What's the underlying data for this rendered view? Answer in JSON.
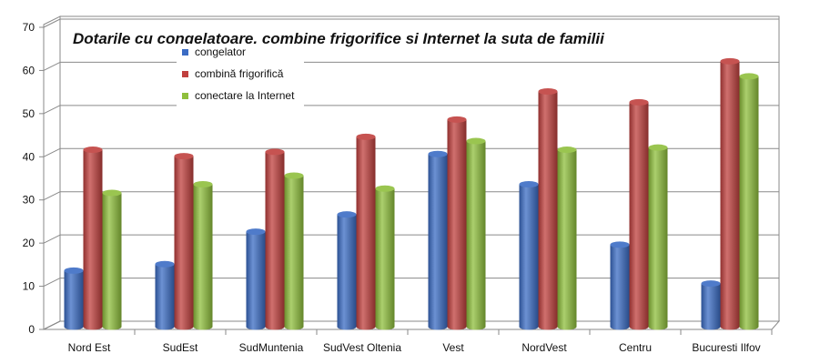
{
  "chart_data": {
    "type": "bar",
    "title": "Dotarile cu congelatoare, combine frigorifice si Internet la suta de familii",
    "xlabel": "",
    "ylabel": "",
    "ylim": [
      0,
      70
    ],
    "yticks": [
      0,
      10,
      20,
      30,
      40,
      50,
      60,
      70
    ],
    "grid": true,
    "legend_position": "top-left",
    "categories": [
      "Nord Est",
      "SudEst",
      "SudMuntenia",
      "SudVest Oltenia",
      "Vest",
      "NordVest",
      "Centru",
      "Bucuresti Ilfov"
    ],
    "series": [
      {
        "name": "congelator",
        "color": "#3b6cc4",
        "values": [
          13,
          14.5,
          22,
          26,
          40,
          33,
          19,
          10
        ]
      },
      {
        "name": "combină  frigorifică",
        "color": "#c0403e",
        "values": [
          41,
          39.5,
          40.5,
          44,
          48,
          54.5,
          52,
          61.5
        ]
      },
      {
        "name": "conectare la Internet",
        "color": "#8fbf3c",
        "values": [
          31,
          33,
          35,
          32,
          43,
          41,
          41.5,
          58
        ]
      }
    ]
  }
}
